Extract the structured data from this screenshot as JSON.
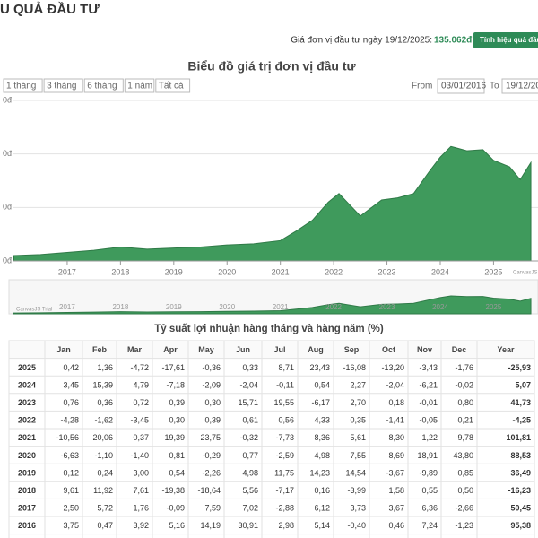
{
  "header": {
    "title": "U QUẢ ĐẦU TƯ"
  },
  "price_line": {
    "label": "Giá đơn vị đầu tư ngày 19/12/2025:",
    "value": "135.062đ",
    "button": "Tính hiệu quả đầu"
  },
  "range_buttons": [
    "1 tháng",
    "3 tháng",
    "6 tháng",
    "1 năm",
    "Tất cả"
  ],
  "date_range": {
    "from_label": "From",
    "from": "03/01/2016",
    "to_label": "To",
    "to": "19/12/20"
  },
  "chart_data": {
    "type": "area",
    "title": "Biểu đồ giá trị đơn vị đầu tư",
    "color": "#3f9a5c",
    "x": [
      2016.0,
      2016.5,
      2017.0,
      2017.5,
      2018.0,
      2018.5,
      2019.0,
      2019.5,
      2020.0,
      2020.5,
      2021.0,
      2021.3,
      2021.6,
      2021.9,
      2022.1,
      2022.5,
      2022.9,
      2023.2,
      2023.5,
      2023.8,
      2024.0,
      2024.2,
      2024.5,
      2024.8,
      2025.0,
      2025.3,
      2025.5,
      2025.7
    ],
    "values": [
      5,
      6,
      8,
      10,
      13,
      11,
      12,
      13,
      15,
      16,
      19,
      28,
      38,
      55,
      63,
      42,
      57,
      59,
      63,
      84,
      97,
      107,
      103,
      104,
      94,
      88,
      76,
      92
    ],
    "xlim": [
      2016.0,
      2025.75
    ],
    "xticks": [
      2017,
      2018,
      2019,
      2020,
      2021,
      2022,
      2023,
      2024,
      2025
    ],
    "ylim": [
      0,
      150
    ],
    "yticks": [
      {
        "value": 0,
        "label": "0đ"
      },
      {
        "value": 50,
        "label": "0đ"
      },
      {
        "value": 100,
        "label": "0đ"
      },
      {
        "value": 150,
        "label": "0đ"
      }
    ],
    "grid": true,
    "watermark": "CanvasJS Trial"
  },
  "table": {
    "title": "Tỷ suất lợi nhuận hàng tháng và hàng năm (%)",
    "header": [
      "Jan",
      "Feb",
      "Mar",
      "Apr",
      "May",
      "Jun",
      "Jul",
      "Aug",
      "Sep",
      "Oct",
      "Nov",
      "Dec",
      "Year"
    ],
    "rows": [
      [
        "2025",
        "0,42",
        "1,36",
        "-4,72",
        "-17,61",
        "-0,36",
        "0,33",
        "8,71",
        "23,43",
        "-16,08",
        "-13,20",
        "-3,43",
        "-1,76",
        "-25,93"
      ],
      [
        "2024",
        "3,45",
        "15,39",
        "4,79",
        "-7,18",
        "-2,09",
        "-2,04",
        "-0,11",
        "0,54",
        "2,27",
        "-2,04",
        "-6,21",
        "-0,02",
        "5,07"
      ],
      [
        "2023",
        "0,76",
        "0,36",
        "0,72",
        "0,39",
        "0,30",
        "15,71",
        "19,55",
        "-6,17",
        "2,70",
        "0,18",
        "-0,01",
        "0,80",
        "41,73"
      ],
      [
        "2022",
        "-4,28",
        "-1,62",
        "-3,45",
        "0,30",
        "0,39",
        "0,61",
        "0,56",
        "4,33",
        "0,35",
        "-1,41",
        "-0,05",
        "0,21",
        "-4,25"
      ],
      [
        "2021",
        "-10,56",
        "20,06",
        "0,37",
        "19,39",
        "23,75",
        "-0,32",
        "-7,73",
        "8,36",
        "5,61",
        "8,30",
        "1,22",
        "9,78",
        "101,81"
      ],
      [
        "2020",
        "-6,63",
        "-1,10",
        "-1,40",
        "0,81",
        "-0,29",
        "0,77",
        "-2,59",
        "4,98",
        "7,55",
        "8,69",
        "18,91",
        "43,80",
        "88,53"
      ],
      [
        "2019",
        "0,12",
        "0,24",
        "3,00",
        "0,54",
        "-2,26",
        "4,98",
        "11,75",
        "14,23",
        "14,54",
        "-3,67",
        "-9,89",
        "0,85",
        "36,49"
      ],
      [
        "2018",
        "9,61",
        "11,92",
        "7,61",
        "-19,38",
        "-18,64",
        "5,56",
        "-7,17",
        "0,16",
        "-3,99",
        "1,58",
        "0,55",
        "0,50",
        "-16,23"
      ],
      [
        "2017",
        "2,50",
        "5,72",
        "1,76",
        "-0,09",
        "7,59",
        "7,02",
        "-2,88",
        "6,12",
        "3,73",
        "3,67",
        "6,36",
        "-2,66",
        "50,45"
      ],
      [
        "2016",
        "3,75",
        "0,47",
        "3,92",
        "5,16",
        "14,19",
        "30,91",
        "2,98",
        "5,14",
        "-0,40",
        "0,46",
        "7,24",
        "-1,23",
        "95,38"
      ]
    ]
  }
}
